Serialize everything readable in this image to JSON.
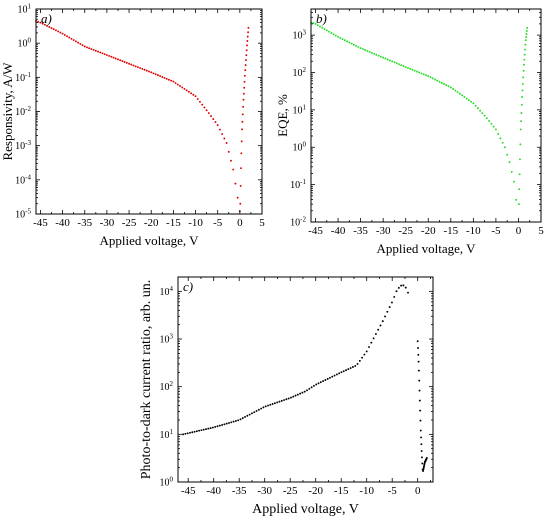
{
  "chart_data": [
    {
      "type": "scatter",
      "panel_label": "a)",
      "xlabel": "Applied voltage, V",
      "ylabel": "Responsivity, A/W",
      "yscale": "log",
      "xlim": [
        -46,
        5
      ],
      "ylim": [
        1e-05,
        10
      ],
      "xticks": [
        -45,
        -40,
        -35,
        -30,
        -25,
        -20,
        -15,
        -10,
        -5,
        0,
        5
      ],
      "yticks": [
        {
          "v": 1e-05,
          "m": "10",
          "e": "-5"
        },
        {
          "v": 0.0001,
          "m": "10",
          "e": "-4"
        },
        {
          "v": 0.001,
          "m": "10",
          "e": "-3"
        },
        {
          "v": 0.01,
          "m": "10",
          "e": "-2"
        },
        {
          "v": 0.1,
          "m": "10",
          "e": "-1"
        },
        {
          "v": 1,
          "m": "10",
          "e": "0"
        },
        {
          "v": 10,
          "m": "10",
          "e": "1"
        }
      ],
      "color": "#e00000",
      "series": [
        {
          "anchors": [
            [
              -46,
              4.5
            ],
            [
              -45,
              4.0
            ],
            [
              -40,
              1.9
            ],
            [
              -35,
              0.8
            ],
            [
              -30,
              0.45
            ],
            [
              -25,
              0.25
            ],
            [
              -20,
              0.14
            ],
            [
              -15,
              0.075
            ],
            [
              -10,
              0.028
            ],
            [
              -7,
              0.009
            ],
            [
              -5,
              0.004
            ],
            [
              -3,
              0.0012
            ],
            [
              -1.5,
              0.0002
            ],
            [
              -0.5,
              3e-05
            ],
            [
              0,
              1.2e-05
            ]
          ],
          "step": 0.5
        },
        {
          "anchors": [
            [
              0.1,
              2e-05
            ],
            [
              0.3,
              0.0004
            ],
            [
              0.5,
              0.003
            ],
            [
              0.8,
              0.02
            ],
            [
              1.2,
              0.15
            ],
            [
              1.6,
              0.8
            ],
            [
              2.0,
              3.5
            ]
          ],
          "step": 0.08
        }
      ]
    },
    {
      "type": "scatter",
      "panel_label": "b)",
      "xlabel": "Applied voltage, V",
      "ylabel": "EQE, %",
      "yscale": "log",
      "xlim": [
        -46,
        5
      ],
      "ylim": [
        0.01,
        5000
      ],
      "xticks": [
        -45,
        -40,
        -35,
        -30,
        -25,
        -20,
        -15,
        -10,
        -5,
        0,
        5
      ],
      "yticks": [
        {
          "v": 0.01,
          "m": "10",
          "e": "-2"
        },
        {
          "v": 0.1,
          "m": "10",
          "e": "-1"
        },
        {
          "v": 1,
          "m": "10",
          "e": "0"
        },
        {
          "v": 10,
          "m": "10",
          "e": "1"
        },
        {
          "v": 100,
          "m": "10",
          "e": "2"
        },
        {
          "v": 1000,
          "m": "10",
          "e": "3"
        }
      ],
      "color": "#22dd22",
      "series": [
        {
          "anchors": [
            [
              -46,
              2200
            ],
            [
              -45,
              2000
            ],
            [
              -40,
              900
            ],
            [
              -35,
              450
            ],
            [
              -30,
              250
            ],
            [
              -25,
              140
            ],
            [
              -20,
              80
            ],
            [
              -15,
              40
            ],
            [
              -10,
              15
            ],
            [
              -7,
              6
            ],
            [
              -5,
              3
            ],
            [
              -3,
              1
            ],
            [
              -2,
              0.4
            ],
            [
              -1,
              0.12
            ],
            [
              -0.2,
              0.02
            ]
          ],
          "step": 0.5
        },
        {
          "anchors": [
            [
              0.1,
              0.03
            ],
            [
              0.3,
              0.3
            ],
            [
              0.5,
              3
            ],
            [
              0.8,
              20
            ],
            [
              1.2,
              150
            ],
            [
              1.6,
              700
            ],
            [
              2.0,
              1800
            ]
          ],
          "step": 0.08
        }
      ]
    },
    {
      "type": "scatter",
      "panel_label": "c)",
      "xlabel": "Applied voltage, V",
      "ylabel": "Photo-to-dark current ratio, arb. un.",
      "yscale": "log",
      "xlim": [
        -47,
        3
      ],
      "ylim": [
        1,
        20000
      ],
      "xticks": [
        -45,
        -40,
        -35,
        -30,
        -25,
        -20,
        -15,
        -10,
        -5,
        0
      ],
      "yticks": [
        {
          "v": 1,
          "m": "10",
          "e": "0"
        },
        {
          "v": 10,
          "m": "10",
          "e": "1"
        },
        {
          "v": 100,
          "m": "10",
          "e": "2"
        },
        {
          "v": 1000,
          "m": "10",
          "e": "3"
        },
        {
          "v": 10000,
          "m": "10",
          "e": "4"
        }
      ],
      "color": "#000000",
      "series": [
        {
          "anchors": [
            [
              -46,
              10
            ],
            [
              -40,
              14
            ],
            [
              -35,
              20
            ],
            [
              -30,
              38
            ],
            [
              -25,
              58
            ],
            [
              -22,
              80
            ],
            [
              -20,
              110
            ],
            [
              -15,
              200
            ],
            [
              -12,
              280
            ],
            [
              -10,
              550
            ],
            [
              -8,
              1400
            ],
            [
              -7,
              2200
            ],
            [
              -5,
              6000
            ],
            [
              -4,
              11000
            ],
            [
              -3,
              14000
            ],
            [
              -2,
              11000
            ],
            [
              -1.5,
              5000
            ]
          ],
          "step": 0.45
        },
        {
          "anchors": [
            [
              0.0,
              900
            ],
            [
              0.2,
              300
            ],
            [
              0.4,
              60
            ],
            [
              0.6,
              12
            ],
            [
              0.8,
              4
            ],
            [
              1.0,
              1.5
            ]
          ],
          "step": 0.06
        },
        {
          "anchors": [
            [
              1.05,
              1.7
            ],
            [
              1.4,
              2.6
            ],
            [
              1.8,
              3.2
            ]
          ],
          "step": 0.05
        }
      ]
    }
  ]
}
